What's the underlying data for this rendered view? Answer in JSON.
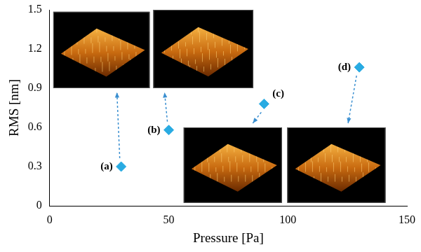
{
  "chart_data": {
    "type": "scatter",
    "x_label": "Pressure [Pa]",
    "y_label": "RMS [nm]",
    "x": [
      30,
      50,
      90,
      130
    ],
    "values": [
      0.3,
      0.58,
      0.78,
      1.06
    ],
    "labels": [
      "(a)",
      "(b)",
      "(c)",
      "(d)"
    ],
    "color": "#29abe2",
    "marker": "diamond",
    "xlim": [
      0,
      150
    ],
    "xticks": [
      0,
      50,
      100,
      150
    ],
    "ylim": [
      0,
      1.5
    ],
    "yticks": [
      0,
      0.3,
      0.6,
      0.9,
      1.2,
      1.5
    ],
    "grid": false
  }
}
